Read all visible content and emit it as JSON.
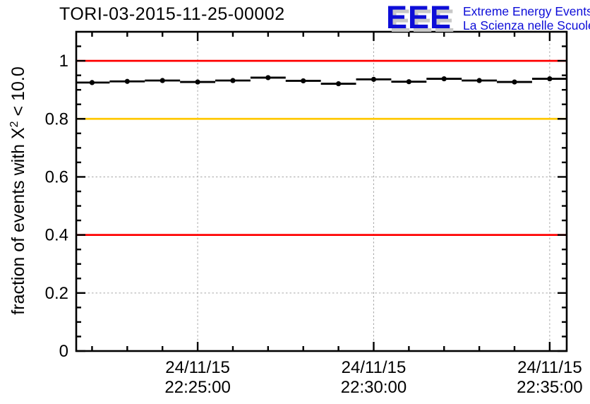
{
  "header": {
    "title": "TORI-03-2015-11-25-00002"
  },
  "logo": {
    "letters": "EEE",
    "line1": "Extreme Energy Events",
    "line2": "La Scienza nelle Scuole",
    "blue": "#0D0DD8",
    "shadow_gray": "#C8C8C8"
  },
  "chart_data": {
    "type": "line",
    "title": "TORI-03-2015-11-25-00002",
    "ylabel_parts": {
      "prefix": "fraction of events with X",
      "sup": "2",
      "suffix": " < 10.0"
    },
    "ylabel_text": "fraction of events with X^2 < 10.0",
    "ylim": [
      0,
      1.1
    ],
    "y_major_step": 0.2,
    "y_minor_step": 0.05,
    "y_tick_labels": [
      "0",
      "0.2",
      "0.4",
      "0.6",
      "0.8",
      "1"
    ],
    "x_range_times": {
      "min": "22:21:33",
      "max": "22:35:29"
    },
    "x_major_ticks": [
      {
        "date": "24/11/15",
        "time": "22:25:00"
      },
      {
        "date": "24/11/15",
        "time": "22:30:00"
      },
      {
        "date": "24/11/15",
        "time": "22:35:00"
      }
    ],
    "x_minor_step_s": 60,
    "grid": {
      "show": true,
      "color": "#A6A6A6",
      "dash": "2.5 3"
    },
    "ref_lines": [
      {
        "y": 1.0,
        "color": "#FF0000"
      },
      {
        "y": 0.8,
        "color": "#FFC800"
      },
      {
        "y": 0.4,
        "color": "#FF0000"
      }
    ],
    "series": [
      {
        "name": "fraction of events with chi2 < 10.0",
        "marker": "filled-circle",
        "color": "#000000",
        "x_err_s": 30,
        "points": [
          {
            "time": "22:22:00",
            "value": 0.925
          },
          {
            "time": "22:23:00",
            "value": 0.929
          },
          {
            "time": "22:24:00",
            "value": 0.932
          },
          {
            "time": "22:25:00",
            "value": 0.927
          },
          {
            "time": "22:26:00",
            "value": 0.932
          },
          {
            "time": "22:27:00",
            "value": 0.942
          },
          {
            "time": "22:28:00",
            "value": 0.931
          },
          {
            "time": "22:29:00",
            "value": 0.921
          },
          {
            "time": "22:30:00",
            "value": 0.936
          },
          {
            "time": "22:31:00",
            "value": 0.928
          },
          {
            "time": "22:32:00",
            "value": 0.938
          },
          {
            "time": "22:33:00",
            "value": 0.932
          },
          {
            "time": "22:34:00",
            "value": 0.927
          },
          {
            "time": "22:35:00",
            "value": 0.938
          }
        ]
      }
    ]
  }
}
